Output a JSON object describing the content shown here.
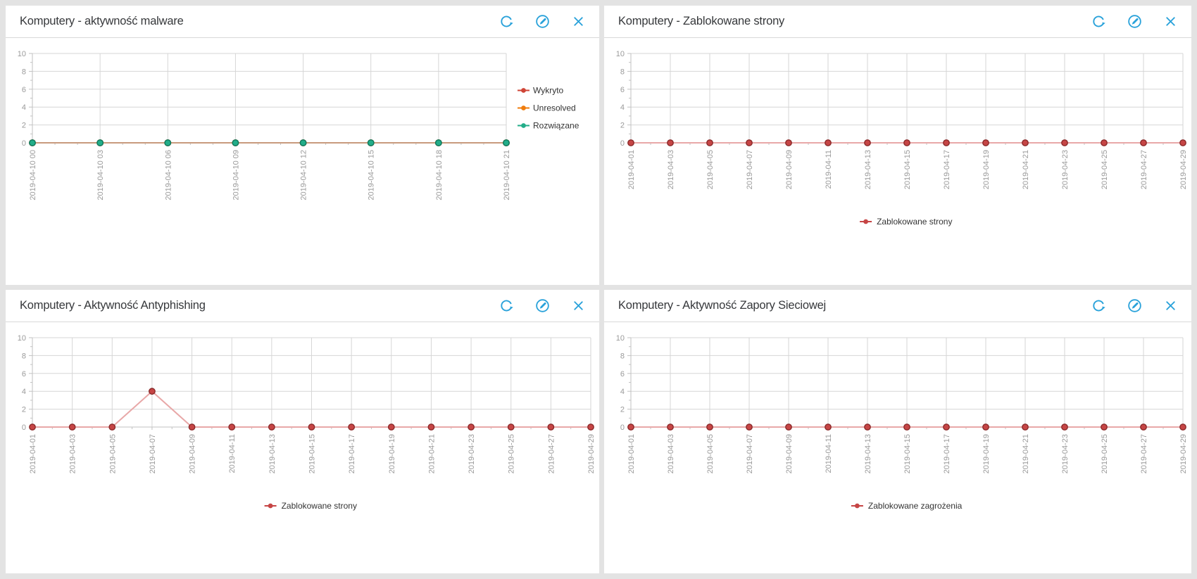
{
  "page": {
    "background": "#e3e3e3"
  },
  "colors": {
    "accent_blue": "#2aa2da",
    "panel_bg": "#ffffff",
    "header_border": "#d9d9d9",
    "title_text": "#36383b",
    "grid": "#d6d6d6",
    "axis": "#c2c2c2",
    "tick_label": "#9a9a9a",
    "legend_text": "#333333",
    "series_red": "#c64545",
    "series_orange": "#ef7d0e",
    "series_green": "#23ad89",
    "zero_line_tan": "#c89a7d",
    "zero_line_pale_red": "#e8a8a8"
  },
  "panels": [
    {
      "title": "Komputery - aktywność malware",
      "actions": [
        {
          "icon": "refresh-icon"
        },
        {
          "icon": "edit-icon"
        },
        {
          "icon": "close-icon"
        }
      ]
    },
    {
      "title": "Komputery - Zablokowane strony",
      "actions": [
        {
          "icon": "refresh-icon"
        },
        {
          "icon": "edit-icon"
        },
        {
          "icon": "close-icon"
        }
      ]
    },
    {
      "title": "Komputery - Aktywność Antyphishing",
      "actions": [
        {
          "icon": "refresh-icon"
        },
        {
          "icon": "edit-icon"
        },
        {
          "icon": "close-icon"
        }
      ]
    },
    {
      "title": "Komputery - Aktywność Zapory Sieciowej",
      "actions": [
        {
          "icon": "refresh-icon"
        },
        {
          "icon": "edit-icon"
        },
        {
          "icon": "close-icon"
        }
      ]
    }
  ],
  "chart_data": [
    {
      "type": "line",
      "title": "Komputery - aktywność malware",
      "categories": [
        "2019-04-10 00",
        "2019-04-10 03",
        "2019-04-10 06",
        "2019-04-10 09",
        "2019-04-10 12",
        "2019-04-10 15",
        "2019-04-10 18",
        "2019-04-10 21"
      ],
      "series": [
        {
          "name": "Wykryto",
          "color": "#cf4436",
          "line_color": "#e2aba3",
          "marker_edge": "#8a2a2a",
          "values": [
            0,
            0,
            0,
            0,
            0,
            0,
            0,
            0
          ]
        },
        {
          "name": "Unresolved",
          "color": "#ef7d0e",
          "line_color": "#e6bd97",
          "marker_edge": "#a8560a",
          "values": [
            0,
            0,
            0,
            0,
            0,
            0,
            0,
            0
          ]
        },
        {
          "name": "Rozwiązane",
          "color": "#23ad89",
          "line_color": "#c89a7d",
          "marker_edge": "#0e7d60",
          "values": [
            0,
            0,
            0,
            0,
            0,
            0,
            0,
            0
          ]
        }
      ],
      "xlabel": "",
      "ylabel": "",
      "ylim": [
        0,
        10
      ],
      "yticks": [
        0,
        2,
        4,
        6,
        8,
        10
      ],
      "grid": true,
      "legend_position": "right",
      "minor_per_gap": 2
    },
    {
      "type": "line",
      "title": "Komputery - Zablokowane strony",
      "categories": [
        "2019-04-01",
        "2019-04-03",
        "2019-04-05",
        "2019-04-07",
        "2019-04-09",
        "2019-04-11",
        "2019-04-13",
        "2019-04-15",
        "2019-04-17",
        "2019-04-19",
        "2019-04-21",
        "2019-04-23",
        "2019-04-25",
        "2019-04-27",
        "2019-04-29"
      ],
      "series": [
        {
          "name": "Zablokowane strony",
          "color": "#c64545",
          "line_color": "#e8a8a8",
          "marker_edge": "#8a2a2a",
          "values": [
            0,
            0,
            0,
            0,
            0,
            0,
            0,
            0,
            0,
            0,
            0,
            0,
            0,
            0,
            0
          ]
        }
      ],
      "xlabel": "",
      "ylabel": "",
      "ylim": [
        0,
        10
      ],
      "yticks": [
        0,
        2,
        4,
        6,
        8,
        10
      ],
      "grid": true,
      "legend_position": "bottom",
      "minor_per_gap": 1
    },
    {
      "type": "line",
      "title": "Komputery - Aktywność Antyphishing",
      "categories": [
        "2019-04-01",
        "2019-04-03",
        "2019-04-05",
        "2019-04-07",
        "2019-04-09",
        "2019-04-11",
        "2019-04-13",
        "2019-04-15",
        "2019-04-17",
        "2019-04-19",
        "2019-04-21",
        "2019-04-23",
        "2019-04-25",
        "2019-04-27",
        "2019-04-29"
      ],
      "series": [
        {
          "name": "Zablokowane strony",
          "color": "#c64545",
          "line_color": "#e8a8a8",
          "marker_edge": "#8a2a2a",
          "values": [
            0,
            0,
            0,
            4,
            0,
            0,
            0,
            0,
            0,
            0,
            0,
            0,
            0,
            0,
            0
          ]
        }
      ],
      "xlabel": "",
      "ylabel": "",
      "ylim": [
        0,
        10
      ],
      "yticks": [
        0,
        2,
        4,
        6,
        8,
        10
      ],
      "grid": true,
      "legend_position": "bottom",
      "minor_per_gap": 1
    },
    {
      "type": "line",
      "title": "Komputery - Aktywność Zapory Sieciowej",
      "categories": [
        "2019-04-01",
        "2019-04-03",
        "2019-04-05",
        "2019-04-07",
        "2019-04-09",
        "2019-04-11",
        "2019-04-13",
        "2019-04-15",
        "2019-04-17",
        "2019-04-19",
        "2019-04-21",
        "2019-04-23",
        "2019-04-25",
        "2019-04-27",
        "2019-04-29"
      ],
      "series": [
        {
          "name": "Zablokowane zagrożenia",
          "color": "#c64545",
          "line_color": "#e8a8a8",
          "marker_edge": "#8a2a2a",
          "values": [
            0,
            0,
            0,
            0,
            0,
            0,
            0,
            0,
            0,
            0,
            0,
            0,
            0,
            0,
            0
          ]
        }
      ],
      "xlabel": "",
      "ylabel": "",
      "ylim": [
        0,
        10
      ],
      "yticks": [
        0,
        2,
        4,
        6,
        8,
        10
      ],
      "grid": true,
      "legend_position": "bottom",
      "minor_per_gap": 1
    }
  ]
}
